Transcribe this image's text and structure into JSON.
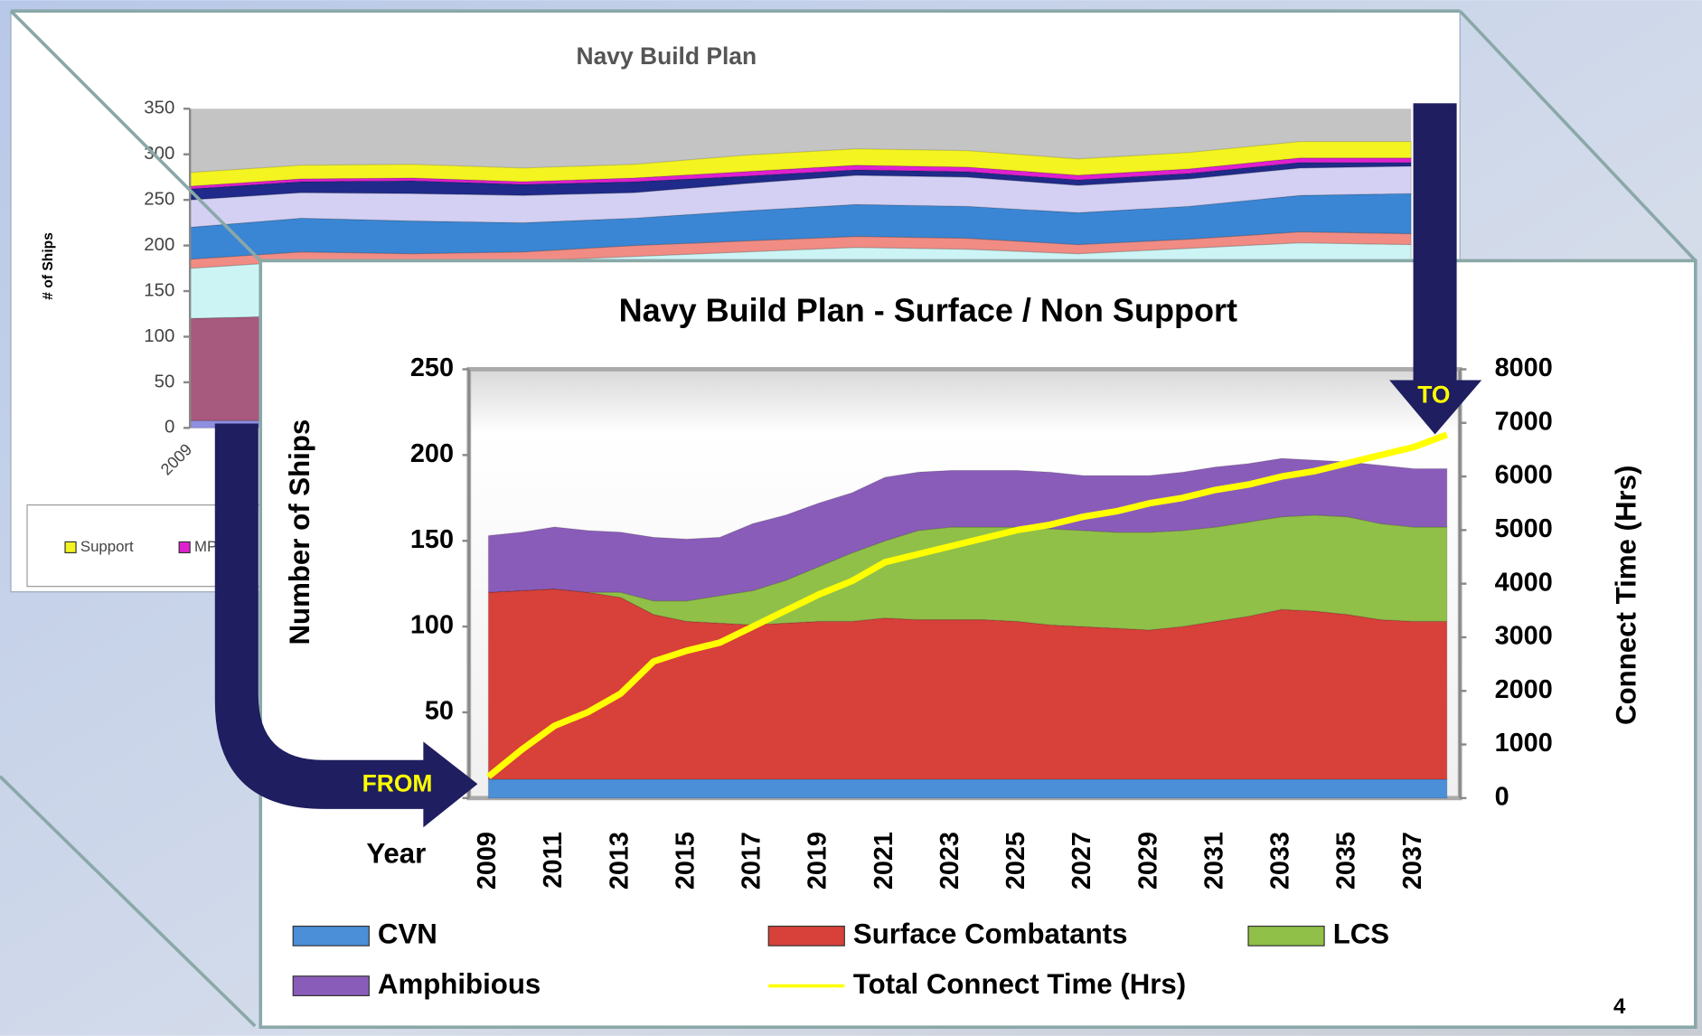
{
  "chart_data": [
    {
      "type": "area",
      "title": "Navy Build Plan",
      "y_label": "# of Ships",
      "categories": [
        "2009",
        null,
        null,
        null,
        null,
        null,
        null,
        null,
        null,
        null,
        null,
        null
      ],
      "ylim": [
        0,
        350
      ],
      "yticks": [
        0,
        50,
        100,
        150,
        200,
        250,
        300,
        350
      ],
      "stacked": true,
      "grid": false,
      "series": [
        {
          "color": "#8f8fe0",
          "values": [
            8,
            8,
            8,
            8,
            8,
            8,
            8,
            8,
            8,
            8,
            8,
            8
          ]
        },
        {
          "color": "#a8597e",
          "values": [
            112,
            115,
            110,
            105,
            100,
            100,
            100,
            98,
            95,
            97,
            100,
            100
          ]
        },
        {
          "color": "#ccf4f4",
          "values": [
            55,
            60,
            65,
            70,
            80,
            85,
            90,
            90,
            88,
            92,
            95,
            93
          ]
        },
        {
          "color": "#f08c84",
          "values": [
            10,
            10,
            8,
            10,
            12,
            12,
            12,
            12,
            10,
            10,
            12,
            12
          ]
        },
        {
          "color": "#3a86d4",
          "values": [
            35,
            37,
            36,
            32,
            30,
            33,
            35,
            35,
            35,
            36,
            40,
            44
          ]
        },
        {
          "color": "#d4d0f4",
          "values": [
            30,
            28,
            30,
            30,
            28,
            30,
            32,
            32,
            30,
            30,
            30,
            30
          ]
        },
        {
          "color": "#1f2a8a",
          "values": [
            12,
            12,
            14,
            12,
            12,
            8,
            6,
            6,
            6,
            6,
            6,
            4
          ]
        },
        {
          "name": "MP",
          "color": "#e020d0",
          "values": [
            3,
            3,
            3,
            3,
            4,
            5,
            5,
            5,
            5,
            5,
            5,
            5
          ]
        },
        {
          "name": "Support",
          "color": "#f4f420",
          "values": [
            15,
            15,
            15,
            15,
            15,
            18,
            18,
            18,
            18,
            18,
            18,
            18
          ]
        }
      ]
    },
    {
      "type": "area",
      "title": "Navy Build Plan - Surface / Non Support",
      "x_label": "Year",
      "y_label": "Number of Ships",
      "y2_label": "Connect Time (Hrs)",
      "categories": [
        "2009",
        null,
        "2011",
        null,
        "2013",
        null,
        "2015",
        null,
        "2017",
        null,
        "2019",
        null,
        "2021",
        null,
        "2023",
        null,
        "2025",
        null,
        "2027",
        null,
        "2029",
        null,
        "2031",
        null,
        "2033",
        null,
        "2035",
        null,
        "2037",
        null
      ],
      "ylim": [
        0,
        250
      ],
      "yticks": [
        0,
        50,
        100,
        150,
        200,
        250
      ],
      "y2lim": [
        0,
        8000
      ],
      "y2ticks": [
        0,
        1000,
        2000,
        3000,
        4000,
        5000,
        6000,
        7000,
        8000
      ],
      "stacked": true,
      "grid": false,
      "series": [
        {
          "name": "CVN",
          "color": "#4a8fd8",
          "values": [
            11,
            11,
            11,
            11,
            11,
            11,
            11,
            11,
            11,
            11,
            11,
            11,
            11,
            11,
            11,
            11,
            11,
            11,
            11,
            11,
            11,
            11,
            11,
            11,
            11,
            11,
            11,
            11,
            11,
            11
          ]
        },
        {
          "name": "Surface Combatants",
          "color": "#d8403a",
          "values": [
            109,
            110,
            111,
            109,
            106,
            96,
            92,
            91,
            90,
            91,
            92,
            92,
            94,
            93,
            93,
            93,
            92,
            90,
            89,
            88,
            87,
            89,
            92,
            95,
            99,
            98,
            96,
            93,
            92,
            92
          ]
        },
        {
          "name": "LCS",
          "color": "#90c048",
          "values": [
            0,
            0,
            0,
            0,
            3,
            8,
            12,
            16,
            20,
            25,
            32,
            40,
            45,
            52,
            54,
            54,
            55,
            56,
            56,
            56,
            57,
            56,
            55,
            55,
            54,
            56,
            57,
            56,
            55,
            55
          ]
        },
        {
          "name": "Amphibious",
          "color": "#8a5cba",
          "values": [
            33,
            34,
            36,
            36,
            35,
            37,
            36,
            34,
            39,
            38,
            37,
            35,
            37,
            34,
            33,
            33,
            33,
            33,
            32,
            33,
            33,
            34,
            35,
            34,
            34,
            32,
            32,
            34,
            34,
            34
          ]
        },
        {
          "name": "Total Connect Time (Hrs)",
          "type": "line",
          "axis": "y2",
          "color": "#ffff00",
          "values": [
            400,
            900,
            1350,
            1600,
            1950,
            2550,
            2750,
            2900,
            3200,
            3500,
            3800,
            4050,
            4400,
            4550,
            4700,
            4850,
            5000,
            5100,
            5250,
            5350,
            5500,
            5600,
            5750,
            5850,
            6000,
            6100,
            6250,
            6400,
            6550,
            6780
          ]
        }
      ],
      "annotations": [
        "FROM",
        "TO"
      ]
    }
  ],
  "page_number": "4"
}
